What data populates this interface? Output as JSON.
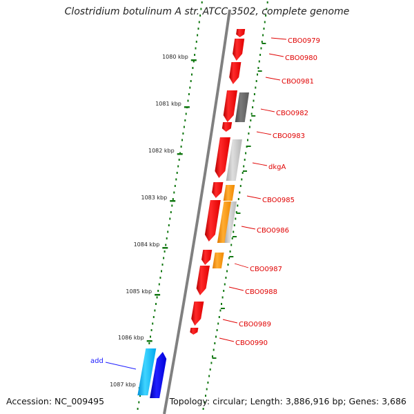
{
  "title": "Clostridium botulinum A str. ATCC 3502, complete genome",
  "accession": "Accession: NC_009495",
  "topology": "Topology: circular; Length: 3,886,916 bp; Genes: 3,686",
  "ticks": [
    {
      "label": "1080 kbp",
      "kbp": 1080
    },
    {
      "label": "1081 kbp",
      "kbp": 1081
    },
    {
      "label": "1082 kbp",
      "kbp": 1082
    },
    {
      "label": "1083 kbp",
      "kbp": 1083
    },
    {
      "label": "1084 kbp",
      "kbp": 1084
    },
    {
      "label": "1085 kbp",
      "kbp": 1085
    },
    {
      "label": "1086 kbp",
      "kbp": 1086
    },
    {
      "label": "1087 kbp",
      "kbp": 1087
    }
  ],
  "gene_labels": [
    {
      "label": "CBO0979"
    },
    {
      "label": "CBO0980"
    },
    {
      "label": "CBO0981"
    },
    {
      "label": "CBO0982"
    },
    {
      "label": "CBO0983"
    },
    {
      "label": "dkgA"
    },
    {
      "label": "CBO0985"
    },
    {
      "label": "CBO0986"
    },
    {
      "label": "CBO0987"
    },
    {
      "label": "CBO0988"
    },
    {
      "label": "CBO0989"
    },
    {
      "label": "CBO0990"
    }
  ],
  "other_labels": [
    {
      "label": "add"
    }
  ],
  "colors": {
    "gene_red": "#ff0000",
    "cog_dark_gray": "#6e6e6e",
    "cog_light_gray": "#c8c8c8",
    "cog_orange": "#ff9900",
    "add_cyan": "#00b4ff",
    "add_blue": "#0000ff",
    "label_red": "#e00000",
    "label_blue": "#1a1aff",
    "tick_green": "#117711",
    "backbone_gray": "#808080"
  }
}
